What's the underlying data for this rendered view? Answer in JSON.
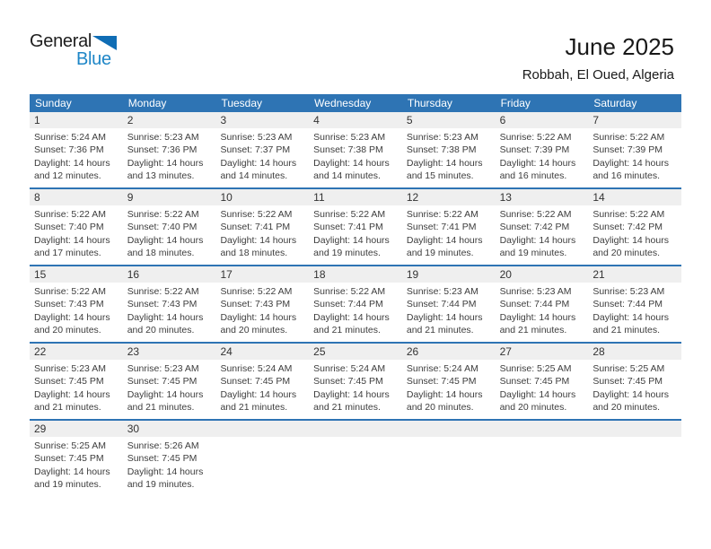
{
  "logo": {
    "part1": "General",
    "part2": "Blue"
  },
  "header": {
    "title": "June 2025",
    "location": "Robbah, El Oued, Algeria"
  },
  "labels": {
    "sunrise": "Sunrise:",
    "sunset": "Sunset:",
    "daylight": "Daylight:"
  },
  "colors": {
    "header_blue": "#2E74B4",
    "separator_blue": "#2E74B4",
    "band_gray": "#EFEFEF",
    "logo_blue": "#1E86C7",
    "logo_triangle_blue": "#0F6DB5"
  },
  "calendar": {
    "weekdays": [
      "Sunday",
      "Monday",
      "Tuesday",
      "Wednesday",
      "Thursday",
      "Friday",
      "Saturday"
    ],
    "weeks": [
      [
        {
          "day": "1",
          "sunrise": "5:24 AM",
          "sunset": "7:36 PM",
          "daylight": "14 hours and 12 minutes."
        },
        {
          "day": "2",
          "sunrise": "5:23 AM",
          "sunset": "7:36 PM",
          "daylight": "14 hours and 13 minutes."
        },
        {
          "day": "3",
          "sunrise": "5:23 AM",
          "sunset": "7:37 PM",
          "daylight": "14 hours and 14 minutes."
        },
        {
          "day": "4",
          "sunrise": "5:23 AM",
          "sunset": "7:38 PM",
          "daylight": "14 hours and 14 minutes."
        },
        {
          "day": "5",
          "sunrise": "5:23 AM",
          "sunset": "7:38 PM",
          "daylight": "14 hours and 15 minutes."
        },
        {
          "day": "6",
          "sunrise": "5:22 AM",
          "sunset": "7:39 PM",
          "daylight": "14 hours and 16 minutes."
        },
        {
          "day": "7",
          "sunrise": "5:22 AM",
          "sunset": "7:39 PM",
          "daylight": "14 hours and 16 minutes."
        }
      ],
      [
        {
          "day": "8",
          "sunrise": "5:22 AM",
          "sunset": "7:40 PM",
          "daylight": "14 hours and 17 minutes."
        },
        {
          "day": "9",
          "sunrise": "5:22 AM",
          "sunset": "7:40 PM",
          "daylight": "14 hours and 18 minutes."
        },
        {
          "day": "10",
          "sunrise": "5:22 AM",
          "sunset": "7:41 PM",
          "daylight": "14 hours and 18 minutes."
        },
        {
          "day": "11",
          "sunrise": "5:22 AM",
          "sunset": "7:41 PM",
          "daylight": "14 hours and 19 minutes."
        },
        {
          "day": "12",
          "sunrise": "5:22 AM",
          "sunset": "7:41 PM",
          "daylight": "14 hours and 19 minutes."
        },
        {
          "day": "13",
          "sunrise": "5:22 AM",
          "sunset": "7:42 PM",
          "daylight": "14 hours and 19 minutes."
        },
        {
          "day": "14",
          "sunrise": "5:22 AM",
          "sunset": "7:42 PM",
          "daylight": "14 hours and 20 minutes."
        }
      ],
      [
        {
          "day": "15",
          "sunrise": "5:22 AM",
          "sunset": "7:43 PM",
          "daylight": "14 hours and 20 minutes."
        },
        {
          "day": "16",
          "sunrise": "5:22 AM",
          "sunset": "7:43 PM",
          "daylight": "14 hours and 20 minutes."
        },
        {
          "day": "17",
          "sunrise": "5:22 AM",
          "sunset": "7:43 PM",
          "daylight": "14 hours and 20 minutes."
        },
        {
          "day": "18",
          "sunrise": "5:22 AM",
          "sunset": "7:44 PM",
          "daylight": "14 hours and 21 minutes."
        },
        {
          "day": "19",
          "sunrise": "5:23 AM",
          "sunset": "7:44 PM",
          "daylight": "14 hours and 21 minutes."
        },
        {
          "day": "20",
          "sunrise": "5:23 AM",
          "sunset": "7:44 PM",
          "daylight": "14 hours and 21 minutes."
        },
        {
          "day": "21",
          "sunrise": "5:23 AM",
          "sunset": "7:44 PM",
          "daylight": "14 hours and 21 minutes."
        }
      ],
      [
        {
          "day": "22",
          "sunrise": "5:23 AM",
          "sunset": "7:45 PM",
          "daylight": "14 hours and 21 minutes."
        },
        {
          "day": "23",
          "sunrise": "5:23 AM",
          "sunset": "7:45 PM",
          "daylight": "14 hours and 21 minutes."
        },
        {
          "day": "24",
          "sunrise": "5:24 AM",
          "sunset": "7:45 PM",
          "daylight": "14 hours and 21 minutes."
        },
        {
          "day": "25",
          "sunrise": "5:24 AM",
          "sunset": "7:45 PM",
          "daylight": "14 hours and 21 minutes."
        },
        {
          "day": "26",
          "sunrise": "5:24 AM",
          "sunset": "7:45 PM",
          "daylight": "14 hours and 20 minutes."
        },
        {
          "day": "27",
          "sunrise": "5:25 AM",
          "sunset": "7:45 PM",
          "daylight": "14 hours and 20 minutes."
        },
        {
          "day": "28",
          "sunrise": "5:25 AM",
          "sunset": "7:45 PM",
          "daylight": "14 hours and 20 minutes."
        }
      ],
      [
        {
          "day": "29",
          "sunrise": "5:25 AM",
          "sunset": "7:45 PM",
          "daylight": "14 hours and 19 minutes."
        },
        {
          "day": "30",
          "sunrise": "5:26 AM",
          "sunset": "7:45 PM",
          "daylight": "14 hours and 19 minutes."
        },
        null,
        null,
        null,
        null,
        null
      ]
    ]
  }
}
